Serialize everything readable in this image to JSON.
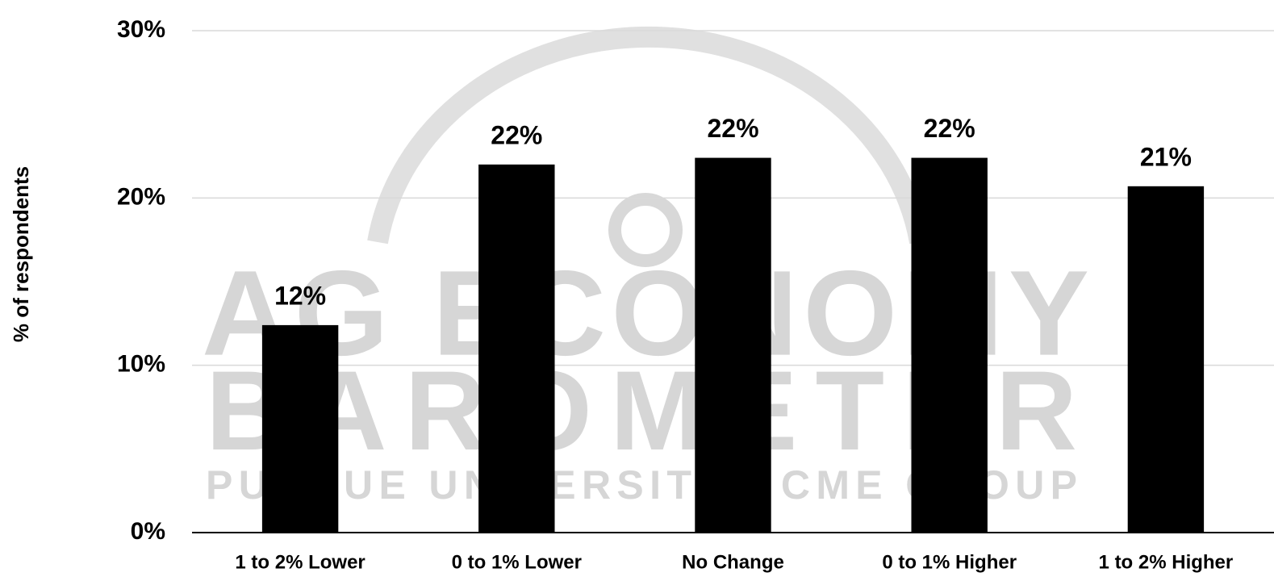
{
  "chart_data": {
    "type": "bar",
    "y_label": "% of respondents",
    "watermark": [
      "AG ECONOMY",
      "BAROMETER",
      "PURDUE UNIVERSITY | CME GROUP"
    ],
    "categories": [
      "1 to 2% Lower",
      "0 to 1% Lower",
      "No Change",
      "0 to 1% Higher",
      "1 to 2% Higher"
    ],
    "values": [
      12.4,
      22,
      22.4,
      22.4,
      20.7
    ],
    "value_labels": [
      "12%",
      "22%",
      "22%",
      "22%",
      "21%"
    ],
    "color": "#000000",
    "ylim": [
      0,
      30
    ],
    "yticks": [
      {
        "value": 0,
        "label": "0%"
      },
      {
        "value": 10,
        "label": "10%"
      },
      {
        "value": 20,
        "label": "20%"
      },
      {
        "value": 30,
        "label": "30%"
      }
    ],
    "grid": true
  }
}
